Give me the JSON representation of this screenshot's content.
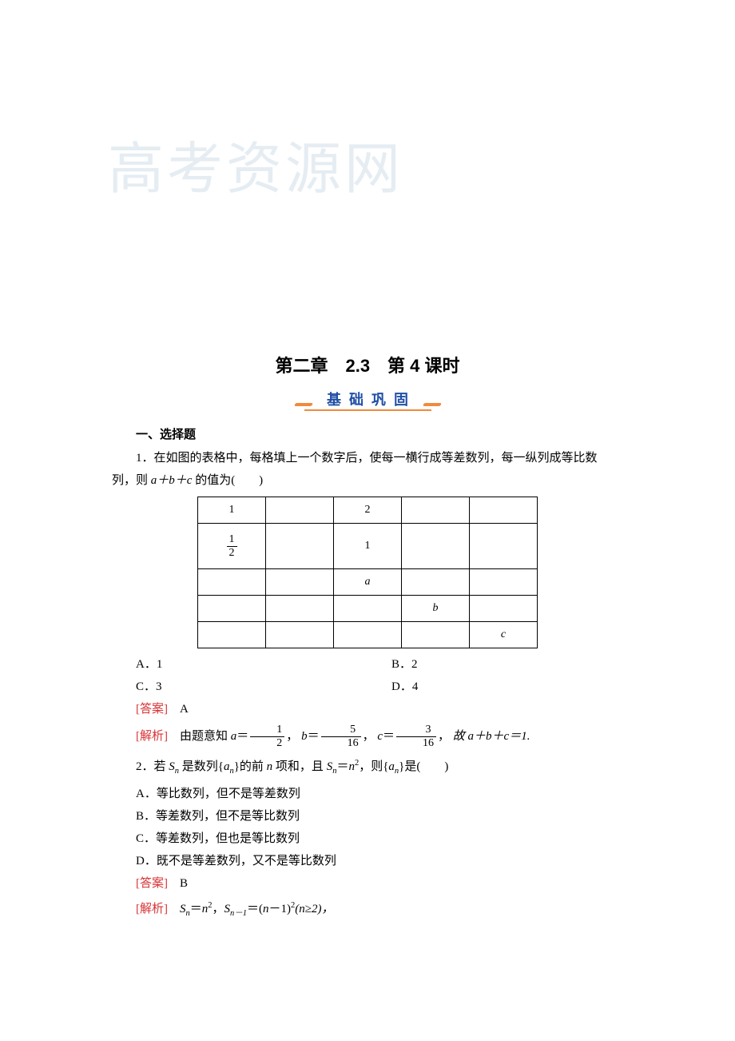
{
  "watermark": "高考资源网",
  "chapter_title": "第二章　2.3　第 4 课时",
  "section_banner": "基础巩固",
  "section1_heading": "一、选择题",
  "q1": {
    "stem_a": "1．在如图的表格中，每格填上一个数字后，使每一横行成等差数列，每一纵列成等比数",
    "stem_b": "列，则 ",
    "stem_c": " 的值为(　　)",
    "expr": "a＋b＋c",
    "table": {
      "r1c1": "1",
      "r1c3": "2",
      "r2c1_num": "1",
      "r2c1_den": "2",
      "r2c3": "1",
      "r3c3": "a",
      "r4c4": "b",
      "r5c5": "c"
    },
    "opts": {
      "A": "A．1",
      "B": "B．2",
      "C": "C．3",
      "D": "D．4"
    },
    "answer_label": "[答案]",
    "answer": "A",
    "analysis_label": "[解析]",
    "analysis_a": "由题意知 ",
    "analysis_equals_part": "＝",
    "frac_a": {
      "num": "1",
      "den": "2"
    },
    "frac_b": {
      "num": "5",
      "den": "16"
    },
    "frac_c": {
      "num": "3",
      "den": "16"
    },
    "analysis_b": "，",
    "analysis_sum": "故 a＋b＋c＝1."
  },
  "q2": {
    "stem": "2．若 ",
    "mid1": " 是数列{",
    "mid2": "}的前 ",
    "mid3": " 项和，且 ",
    "mid4": "，则{",
    "mid5": "}是(　　)",
    "Sn": "S",
    "an": "a",
    "n": "n",
    "eq": "＝",
    "sq": "2",
    "opts": {
      "A": "A．等比数列，但不是等差数列",
      "B": "B．等差数列，但不是等比数列",
      "C": "C．等差数列，但也是等比数列",
      "D": "D．既不是等差数列，又不是等比数列"
    },
    "answer_label": "[答案]",
    "answer": "B",
    "analysis_label": "[解析]",
    "analysis_a": "＝",
    "analysis_b": "，",
    "nminus1": "n－1",
    "paren_a": "＝(",
    "paren_b": "－1)",
    "cond": "(n≥2)，"
  },
  "colors": {
    "accent_blue": "#1f4fa6",
    "accent_orange": "#f08a3c",
    "accent_red": "#d93234",
    "text": "#000000",
    "background": "#ffffff",
    "watermark": "#e5edf3"
  }
}
